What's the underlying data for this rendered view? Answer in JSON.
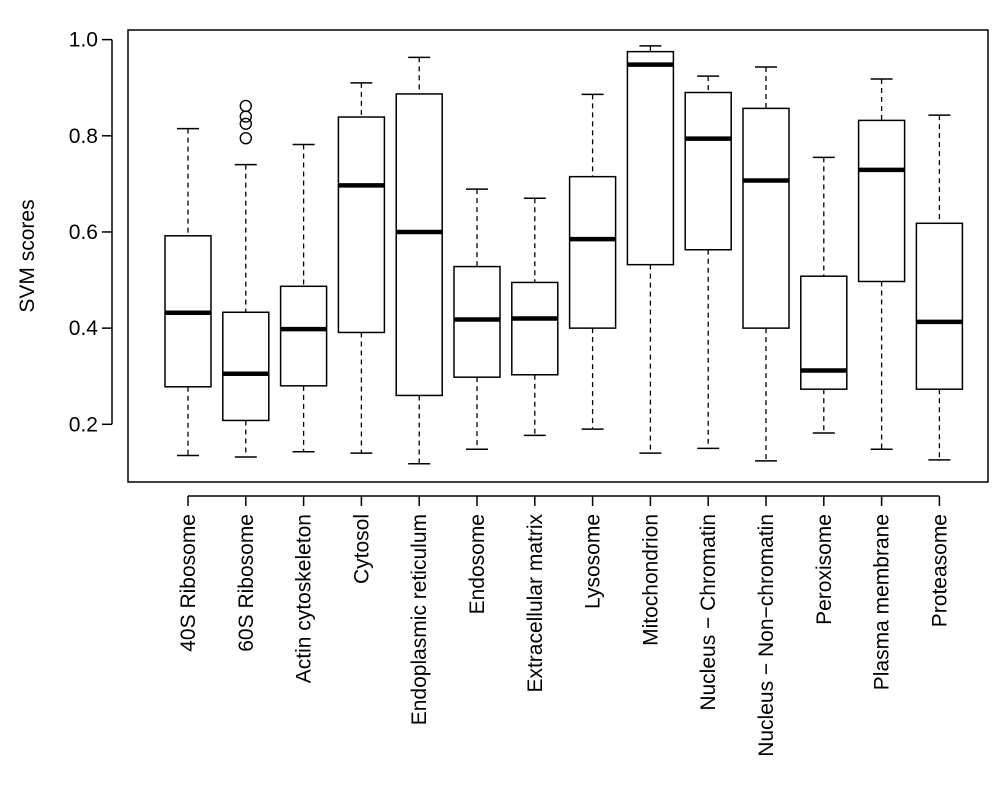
{
  "chart_data": {
    "type": "boxplot",
    "title": "",
    "xlabel": "",
    "ylabel": "SVM scores",
    "ylim": [
      0.08,
      1.02
    ],
    "yticks": [
      0.2,
      0.4,
      0.6,
      0.8,
      1.0
    ],
    "ytick_labels": [
      "0.2",
      "0.4",
      "0.6",
      "0.8",
      "1.0"
    ],
    "categories": [
      "40S Ribosome",
      "60S Ribosome",
      "Actin cytoskeleton",
      "Cytosol",
      "Endoplasmic reticulum",
      "Endosome",
      "Extracellular matrix",
      "Lysosome",
      "Mitochondrion",
      "Nucleus − Chromatin",
      "Nucleus − Non−chromatin",
      "Peroxisome",
      "Plasma membrane",
      "Proteasome"
    ],
    "boxes": [
      {
        "whisker_low": 0.135,
        "q1": 0.278,
        "median": 0.432,
        "q3": 0.592,
        "whisker_high": 0.815,
        "outliers": []
      },
      {
        "whisker_low": 0.132,
        "q1": 0.208,
        "median": 0.305,
        "q3": 0.433,
        "whisker_high": 0.74,
        "outliers": [
          0.795,
          0.825,
          0.84,
          0.862
        ]
      },
      {
        "whisker_low": 0.143,
        "q1": 0.28,
        "median": 0.398,
        "q3": 0.487,
        "whisker_high": 0.782,
        "outliers": []
      },
      {
        "whisker_low": 0.14,
        "q1": 0.391,
        "median": 0.697,
        "q3": 0.839,
        "whisker_high": 0.91,
        "outliers": []
      },
      {
        "whisker_low": 0.118,
        "q1": 0.26,
        "median": 0.6,
        "q3": 0.887,
        "whisker_high": 0.963,
        "outliers": []
      },
      {
        "whisker_low": 0.148,
        "q1": 0.298,
        "median": 0.418,
        "q3": 0.528,
        "whisker_high": 0.689,
        "outliers": []
      },
      {
        "whisker_low": 0.177,
        "q1": 0.303,
        "median": 0.42,
        "q3": 0.495,
        "whisker_high": 0.67,
        "outliers": []
      },
      {
        "whisker_low": 0.19,
        "q1": 0.4,
        "median": 0.585,
        "q3": 0.715,
        "whisker_high": 0.886,
        "outliers": []
      },
      {
        "whisker_low": 0.14,
        "q1": 0.532,
        "median": 0.948,
        "q3": 0.975,
        "whisker_high": 0.987,
        "outliers": []
      },
      {
        "whisker_low": 0.15,
        "q1": 0.563,
        "median": 0.794,
        "q3": 0.89,
        "whisker_high": 0.924,
        "outliers": []
      },
      {
        "whisker_low": 0.124,
        "q1": 0.4,
        "median": 0.707,
        "q3": 0.857,
        "whisker_high": 0.943,
        "outliers": []
      },
      {
        "whisker_low": 0.182,
        "q1": 0.273,
        "median": 0.312,
        "q3": 0.508,
        "whisker_high": 0.755,
        "outliers": []
      },
      {
        "whisker_low": 0.148,
        "q1": 0.497,
        "median": 0.729,
        "q3": 0.832,
        "whisker_high": 0.918,
        "outliers": []
      },
      {
        "whisker_low": 0.126,
        "q1": 0.273,
        "median": 0.413,
        "q3": 0.618,
        "whisker_high": 0.843,
        "outliers": []
      }
    ],
    "grid": false,
    "legend": "none",
    "colors": {
      "box_fill": "#ffffff",
      "stroke": "#000000",
      "background": "#ffffff"
    }
  }
}
